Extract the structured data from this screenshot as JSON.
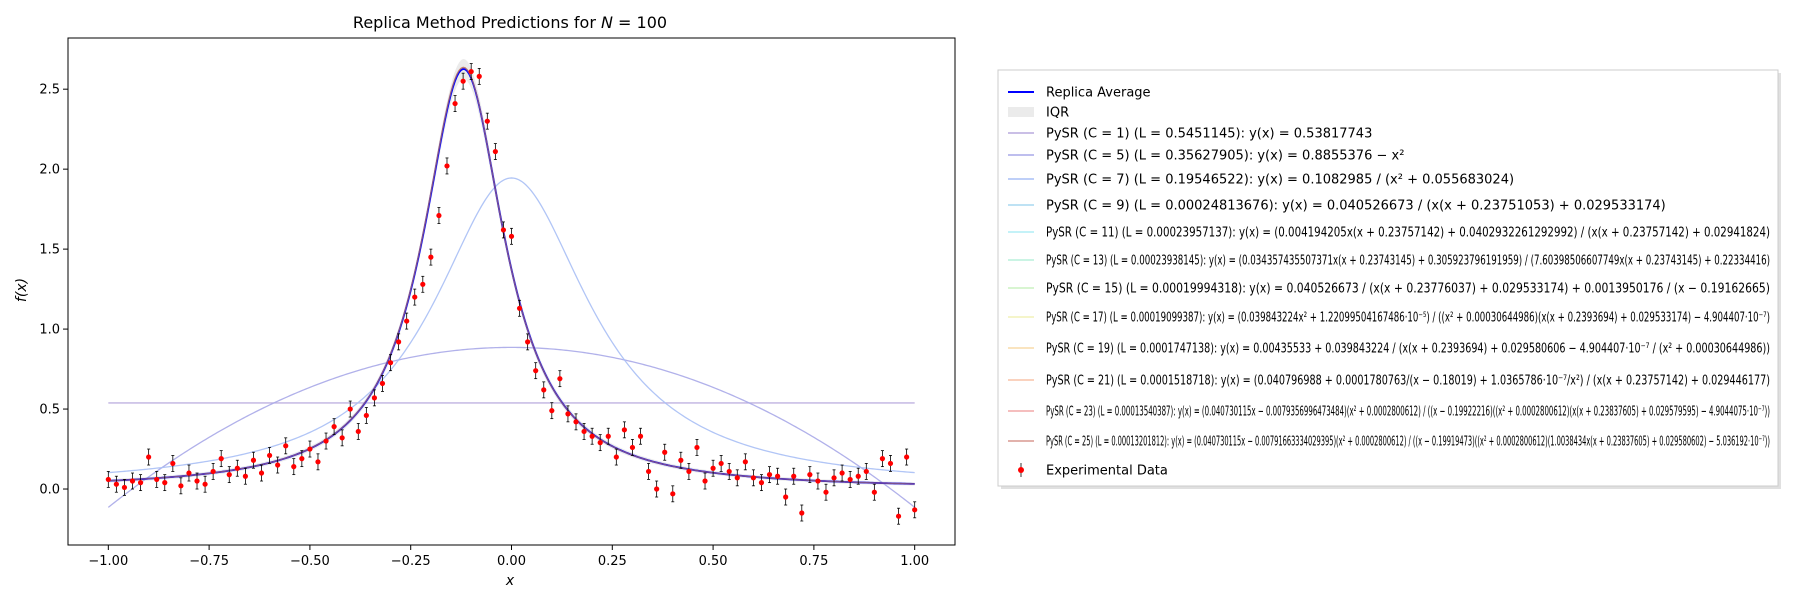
{
  "chart_data": {
    "type": "line",
    "title": "Replica Method Predictions for N = 100",
    "xlabel": "x",
    "ylabel": "f(x)",
    "xlim": [
      -1.1,
      1.1
    ],
    "ylim": [
      -0.35,
      2.82
    ],
    "x_ticks": [
      -1.0,
      -0.75,
      -0.5,
      -0.25,
      0.0,
      0.25,
      0.5,
      0.75,
      1.0
    ],
    "x_tick_labels": [
      "−1.00",
      "−0.75",
      "−0.50",
      "−0.25",
      "0.00",
      "0.25",
      "0.50",
      "0.75",
      "1.00"
    ],
    "y_ticks": [
      0.0,
      0.5,
      1.0,
      1.5,
      2.0,
      2.5
    ],
    "y_tick_labels": [
      "0.0",
      "0.5",
      "1.0",
      "1.5",
      "2.0",
      "2.5"
    ],
    "grid": false,
    "legend_position": "right-outside",
    "legend": [
      {
        "label": "Replica Average",
        "color": "#0000ff",
        "kind": "line"
      },
      {
        "label": "IQR",
        "color": "#dddddd",
        "kind": "patch"
      },
      {
        "label": "PySR (C = 1) (L = 0.5451145): y(x) = 0.53817743",
        "color": "#b8aadd",
        "kind": "line"
      },
      {
        "label": "PySR (C = 5) (L = 0.35627905): y(x) = 0.8855376 − x²",
        "color": "#a8a8e8",
        "kind": "line"
      },
      {
        "label": "PySR (C = 7) (L = 0.19546522): y(x) = 0.1082985 / (x² + 0.055683024)",
        "color": "#a8bff5",
        "kind": "line"
      },
      {
        "label": "PySR (C = 9) (L = 0.00024813676): y(x) = 0.040526673 / (x(x + 0.23751053) + 0.029533174)",
        "color": "#a8d8f0",
        "kind": "line"
      },
      {
        "label": "PySR (C = 11) (L = 0.00023957137): y(x) = (0.004194205x(x + 0.23757142) + 0.0402932261292992) / (x(x + 0.23757142) + 0.02941824)",
        "color": "#b0eef5",
        "kind": "line"
      },
      {
        "label": "PySR (C = 13) (L = 0.00023938145): y(x) = (0.0343574355073​71x(x + 0.23743145) + 0.305923796191959) / (7.60398506607749x(x + 0.23743145) + 0.22334416)",
        "color": "#b8f0dc",
        "kind": "line"
      },
      {
        "label": "PySR (C = 15) (L = 0.00019994318): y(x) = 0.040526673 / (x(x + 0.23776037) + 0.029533174) + 0.0013950176 / (x − 0.19162665)",
        "color": "#ccf2c2",
        "kind": "line"
      },
      {
        "label": "PySR (C = 17) (L = 0.00019099387): y(x) = (0.039843224x² + 1.22099504167486·10⁻⁵) / ((x² + 0.000306449​86)(x(x + 0.2393694) + 0.029533174) − 4.904407·10⁻⁷)",
        "color": "#f2f2b8",
        "kind": "line"
      },
      {
        "label": "PySR (C = 19) (L = 0.0001747138): y(x) = 0.00435533 + 0.039843224 / (x(x + 0.2393694) + 0.029580606 − 4.904407·10⁻⁷ / (x² + 0.00030644986))",
        "color": "#f8dcaa",
        "kind": "line"
      },
      {
        "label": "PySR (C = 21) (L = 0.0001518718): y(x) = (0.040796988 + 0.0001780763/(x − 0.18019) + 1.0365786·10⁻⁷/x²) / (x(x + 0.23757142) + 0.029446177)",
        "color": "#f8c4a8",
        "kind": "line"
      },
      {
        "label": "PySR (C = 23) (L = 0.00013540387): y(x) = (0.040730115x − 0.0079356996473484)(x² + 0.0002800612) / ((x − 0.19922216)((x² + 0.0002800612)(x(x + 0.23837605) + 0.029579595) − 4.9044075·10⁻⁷))",
        "color": "#f2a8a8",
        "kind": "line"
      },
      {
        "label": "PySR (C = 25) (L = 0.00013201812): y(x) = (0.040730115x − 0.00791663334029395)(x² + 0.0002800612) / ((x − 0.19919473)((x² + 0.0002800612)(1.0038434x(x + 0.23837605) + 0.029580602) − 5.036192·10⁻⁷))",
        "color": "#d89890",
        "kind": "line"
      },
      {
        "label": "Experimental Data",
        "color": "#ff0000",
        "kind": "errorbar"
      }
    ],
    "series": [
      {
        "name": "Replica Average",
        "color": "#0000ff",
        "model": "lorentz",
        "params": {
          "a": 0.040526673,
          "b": 0.23751053,
          "c": 0.029533174
        }
      },
      {
        "name": "PySR (C = 1)",
        "color": "#b8aadd",
        "model": "constant",
        "params": {
          "c": 0.53817743
        }
      },
      {
        "name": "PySR (C = 5)",
        "color": "#a8a8e8",
        "model": "quadratic",
        "params": {
          "c": 0.8855376
        }
      },
      {
        "name": "PySR (C = 7)",
        "color": "#a8bff5",
        "model": "rational",
        "params": {
          "a": 0.1082985,
          "c": 0.055683024
        }
      },
      {
        "name": "PySR (C = 9)",
        "color": "#a8d8f0",
        "model": "lorentz",
        "params": {
          "a": 0.040526673,
          "b": 0.23751053,
          "c": 0.029533174
        }
      },
      {
        "name": "PySR (C = 25)",
        "color": "#d89890",
        "model": "lorentz",
        "params": {
          "a": 0.040526673,
          "b": 0.23837605,
          "c": 0.029580602
        }
      }
    ],
    "experimental_data": {
      "name": "Experimental Data",
      "color": "#ff0000",
      "x": [
        -1.0,
        -0.98,
        -0.96,
        -0.94,
        -0.92,
        -0.9,
        -0.88,
        -0.86,
        -0.84,
        -0.82,
        -0.8,
        -0.78,
        -0.76,
        -0.74,
        -0.72,
        -0.7,
        -0.68,
        -0.66,
        -0.64,
        -0.62,
        -0.6,
        -0.58,
        -0.56,
        -0.54,
        -0.52,
        -0.5,
        -0.48,
        -0.46,
        -0.44,
        -0.42,
        -0.4,
        -0.38,
        -0.36,
        -0.34,
        -0.32,
        -0.3,
        -0.28,
        -0.26,
        -0.24,
        -0.22,
        -0.2,
        -0.18,
        -0.16,
        -0.14,
        -0.12,
        -0.1,
        -0.08,
        -0.06,
        -0.04,
        -0.02,
        0.0,
        0.02,
        0.04,
        0.06,
        0.08,
        0.1,
        0.12,
        0.14,
        0.16,
        0.18,
        0.2,
        0.22,
        0.24,
        0.26,
        0.28,
        0.3,
        0.32,
        0.34,
        0.36,
        0.38,
        0.4,
        0.42,
        0.44,
        0.46,
        0.48,
        0.5,
        0.52,
        0.54,
        0.56,
        0.58,
        0.6,
        0.62,
        0.64,
        0.66,
        0.68,
        0.7,
        0.72,
        0.74,
        0.76,
        0.78,
        0.8,
        0.82,
        0.84,
        0.86,
        0.88,
        0.9,
        0.92,
        0.94,
        0.96,
        0.98,
        1.0
      ],
      "y": [
        0.06,
        0.03,
        0.01,
        0.05,
        0.04,
        0.2,
        0.06,
        0.04,
        0.16,
        0.02,
        0.1,
        0.05,
        0.03,
        0.11,
        0.19,
        0.09,
        0.13,
        0.08,
        0.18,
        0.1,
        0.21,
        0.15,
        0.27,
        0.14,
        0.19,
        0.25,
        0.17,
        0.3,
        0.39,
        0.32,
        0.5,
        0.36,
        0.46,
        0.57,
        0.66,
        0.79,
        0.92,
        1.05,
        1.2,
        1.28,
        1.45,
        1.71,
        2.02,
        2.41,
        2.55,
        2.61,
        2.58,
        2.3,
        2.11,
        1.62,
        1.58,
        1.13,
        0.92,
        0.74,
        0.62,
        0.49,
        0.69,
        0.47,
        0.42,
        0.36,
        0.33,
        0.29,
        0.33,
        0.2,
        0.37,
        0.26,
        0.33,
        0.11,
        0.0,
        0.23,
        -0.03,
        0.18,
        0.11,
        0.26,
        0.05,
        0.13,
        0.16,
        0.11,
        0.07,
        0.17,
        0.07,
        0.04,
        0.09,
        0.08,
        -0.05,
        0.08,
        -0.15,
        0.09,
        0.05,
        -0.02,
        0.07,
        0.1,
        0.06,
        0.08,
        0.11,
        -0.02,
        0.19,
        0.16,
        -0.17,
        0.2,
        -0.13
      ],
      "yerr": 0.05
    }
  }
}
